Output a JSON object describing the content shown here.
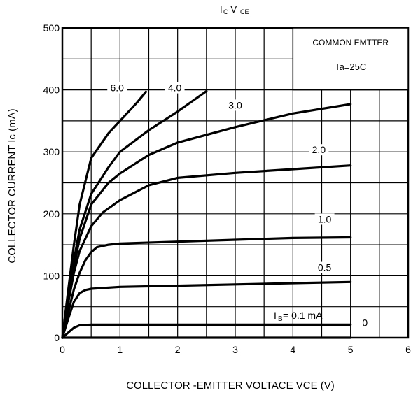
{
  "chart_data": {
    "type": "line",
    "title_main": "Ic-V",
    "title_sub": "CE",
    "title_prefix": "I",
    "title_c": "C",
    "xlabel": "COLLECTOR -EMITTER VOLTACE VCE (V)",
    "ylabel": "COLLECTOR CURRENT Ic (mA)",
    "xlim": [
      0,
      6
    ],
    "ylim": [
      0,
      500
    ],
    "x_ticks": [
      "0",
      "1",
      "2",
      "3",
      "4",
      "5",
      "6"
    ],
    "y_ticks": [
      "0",
      "100",
      "200",
      "300",
      "400",
      "500"
    ],
    "grid": true,
    "annotation_box": {
      "line1": "COMMON EMTTER",
      "line2": "Ta=25C"
    },
    "ib_label": {
      "prefix": "I",
      "sub": "B",
      "rest": " = 0.1 mA"
    },
    "series": [
      {
        "name": "0",
        "x": [
          0,
          5
        ],
        "y": [
          0,
          0
        ]
      },
      {
        "name": "0.1",
        "x": [
          0,
          0.1,
          0.2,
          0.3,
          0.5,
          1,
          2,
          3,
          4,
          5
        ],
        "y": [
          0,
          8,
          16,
          20,
          21,
          21,
          21,
          21,
          21,
          21
        ]
      },
      {
        "name": "0.5",
        "x": [
          0,
          0.1,
          0.2,
          0.3,
          0.4,
          0.5,
          1,
          2,
          3,
          4,
          5
        ],
        "y": [
          0,
          30,
          58,
          72,
          77,
          79,
          82,
          84,
          86,
          88,
          90
        ]
      },
      {
        "name": "1.0",
        "x": [
          0,
          0.1,
          0.2,
          0.3,
          0.4,
          0.5,
          0.6,
          0.8,
          1,
          2,
          3,
          4,
          5
        ],
        "y": [
          0,
          40,
          78,
          105,
          125,
          138,
          146,
          150,
          152,
          155,
          158,
          161,
          162
        ]
      },
      {
        "name": "2.0",
        "x": [
          0,
          0.1,
          0.2,
          0.3,
          0.5,
          0.7,
          1,
          1.5,
          2,
          3,
          4,
          5
        ],
        "y": [
          0,
          55,
          105,
          140,
          180,
          202,
          222,
          246,
          258,
          266,
          272,
          278
        ]
      },
      {
        "name": "3.0",
        "x": [
          0,
          0.1,
          0.2,
          0.3,
          0.5,
          0.8,
          1,
          1.5,
          2,
          3,
          4,
          5
        ],
        "y": [
          0,
          60,
          115,
          160,
          215,
          250,
          265,
          295,
          315,
          340,
          362,
          377
        ]
      },
      {
        "name": "4.0",
        "x": [
          0,
          0.1,
          0.2,
          0.3,
          0.5,
          0.8,
          1,
          1.5,
          2,
          2.5
        ],
        "y": [
          0,
          65,
          125,
          175,
          232,
          275,
          300,
          335,
          365,
          398
        ]
      },
      {
        "name": "6.0",
        "x": [
          0,
          0.1,
          0.2,
          0.3,
          0.5,
          0.8,
          1,
          1.3,
          1.45
        ],
        "y": [
          0,
          75,
          150,
          215,
          290,
          330,
          350,
          380,
          397
        ]
      }
    ],
    "curve_labels": [
      {
        "text": "6.0",
        "x": 0.95,
        "y": 400
      },
      {
        "text": "4.0",
        "x": 1.95,
        "y": 400
      },
      {
        "text": "3.0",
        "x": 3.0,
        "y": 372
      },
      {
        "text": "2.0",
        "x": 4.45,
        "y": 300
      },
      {
        "text": "1.0",
        "x": 4.55,
        "y": 188
      },
      {
        "text": "0.5",
        "x": 4.55,
        "y": 110
      },
      {
        "text": "0",
        "x": 5.25,
        "y": 21
      }
    ]
  }
}
